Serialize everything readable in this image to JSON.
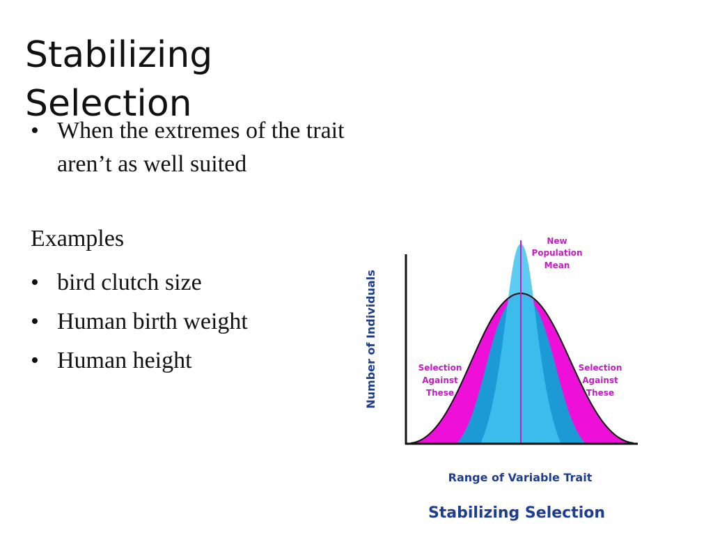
{
  "title": "Stabilizing Selection",
  "bullets": [
    "When the extremes of the trait aren’t as well suited"
  ],
  "examples": {
    "heading": "Examples",
    "items": [
      "bird clutch size",
      "Human birth weight",
      "Human height"
    ]
  },
  "figure": {
    "y_axis_label": "Number of Individuals",
    "x_axis_label": "Range of Variable Trait",
    "caption": "Stabilizing Selection",
    "annotations": {
      "new_mean": [
        "New",
        "Population",
        "Mean"
      ],
      "left": [
        "Selection",
        "Against",
        "These"
      ],
      "right": [
        "Selection",
        "Against",
        "These"
      ]
    }
  }
}
